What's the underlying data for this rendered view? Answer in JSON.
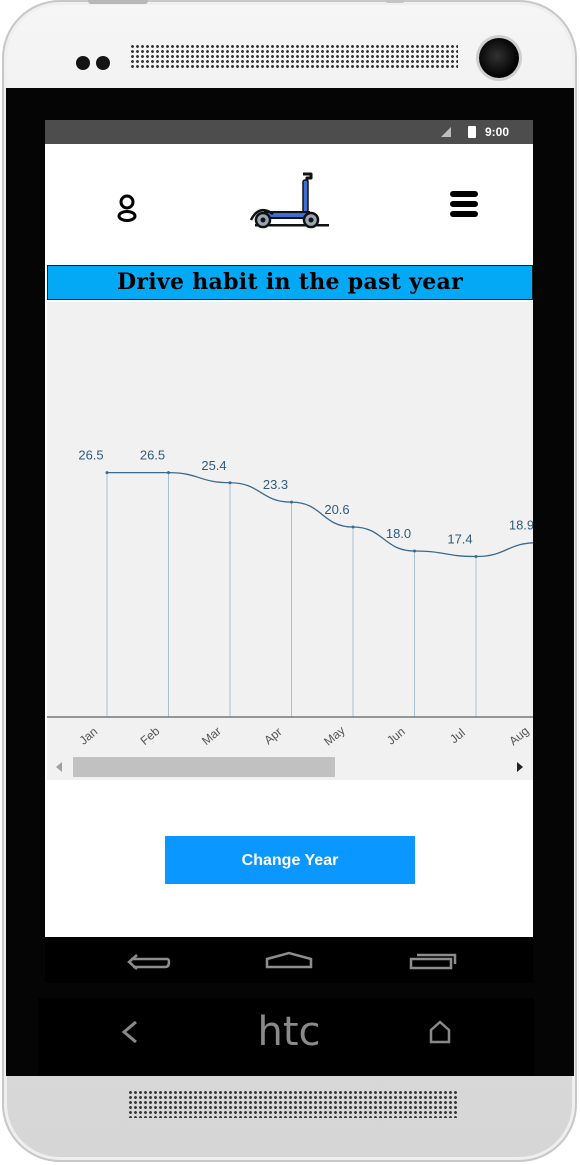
{
  "device": {
    "brand_label": "htc"
  },
  "status_bar": {
    "time": "9:00"
  },
  "header": {
    "user_icon": "user-icon",
    "logo_icon": "kick-scooter-icon",
    "menu_icon": "hamburger-menu-icon"
  },
  "banner": {
    "title": "Drive habit in the past year"
  },
  "chart_data": {
    "type": "line",
    "categories": [
      "Jan",
      "Feb",
      "Mar",
      "Apr",
      "May",
      "Jun",
      "Jul",
      "Aug"
    ],
    "values": [
      26.5,
      26.5,
      25.4,
      23.3,
      20.6,
      18.0,
      17.4,
      18.9
    ],
    "value_labels": [
      "26.5",
      "26.5",
      "25.4",
      "23.3",
      "20.6",
      "18.0",
      "17.4",
      "18.9"
    ],
    "title": "",
    "xlabel": "",
    "ylabel": "",
    "ylim": [
      0,
      45
    ],
    "drop_lines": true,
    "colors": {
      "line": "#3b6a8f",
      "label": "#2f5b7d",
      "drop_line": "#a9bfce",
      "background": "#f1f1f1"
    }
  },
  "scrollbar": {
    "left_arrow": "scroll-left-arrow",
    "right_arrow": "scroll-right-arrow"
  },
  "actions": {
    "change_year_label": "Change Year"
  },
  "colors": {
    "banner": "#03a9f4",
    "button": "#0a97ff"
  }
}
